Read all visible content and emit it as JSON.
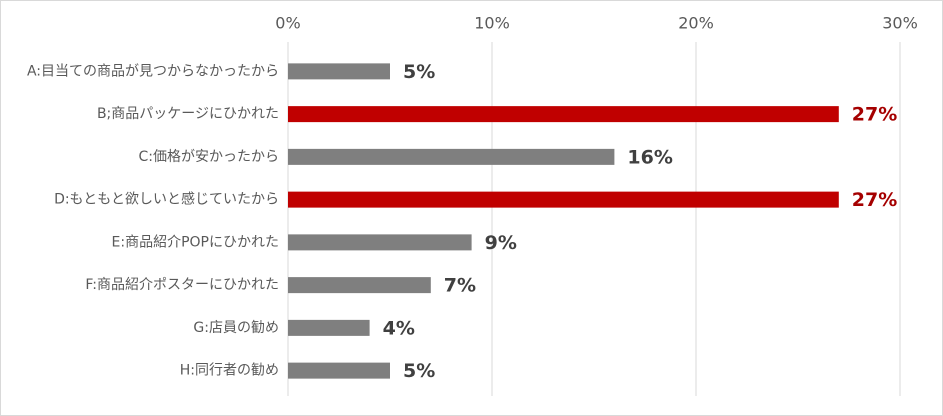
{
  "chart_data": {
    "type": "bar",
    "orientation": "horizontal",
    "categories": [
      "A:目当ての商品が見つからなかったから",
      "B;商品パッケージにひかれた",
      "C:価格が安かったから",
      "D:もともと欲しいと感じていたから",
      "E:商品紹介POPにひかれた",
      "F:商品紹介ポスターにひかれた",
      "G:店員の勧め",
      "H:同行者の勧め"
    ],
    "values": [
      5,
      27,
      16,
      27,
      9,
      7,
      4,
      5
    ],
    "value_labels": [
      "5%",
      "27%",
      "16%",
      "27%",
      "9%",
      "7%",
      "4%",
      "5%"
    ],
    "colors": [
      "#7f7f7f",
      "#c00000",
      "#7f7f7f",
      "#c00000",
      "#7f7f7f",
      "#7f7f7f",
      "#7f7f7f",
      "#7f7f7f"
    ],
    "label_colors": [
      "#404040",
      "#a50000",
      "#404040",
      "#a50000",
      "#404040",
      "#404040",
      "#404040",
      "#404040"
    ],
    "xlim": [
      0,
      30
    ],
    "xticks": [
      {
        "value": 0,
        "label": "0%"
      },
      {
        "value": 10,
        "label": "10%"
      },
      {
        "value": 20,
        "label": "20%"
      },
      {
        "value": 30,
        "label": "30%"
      }
    ],
    "grid": true
  }
}
